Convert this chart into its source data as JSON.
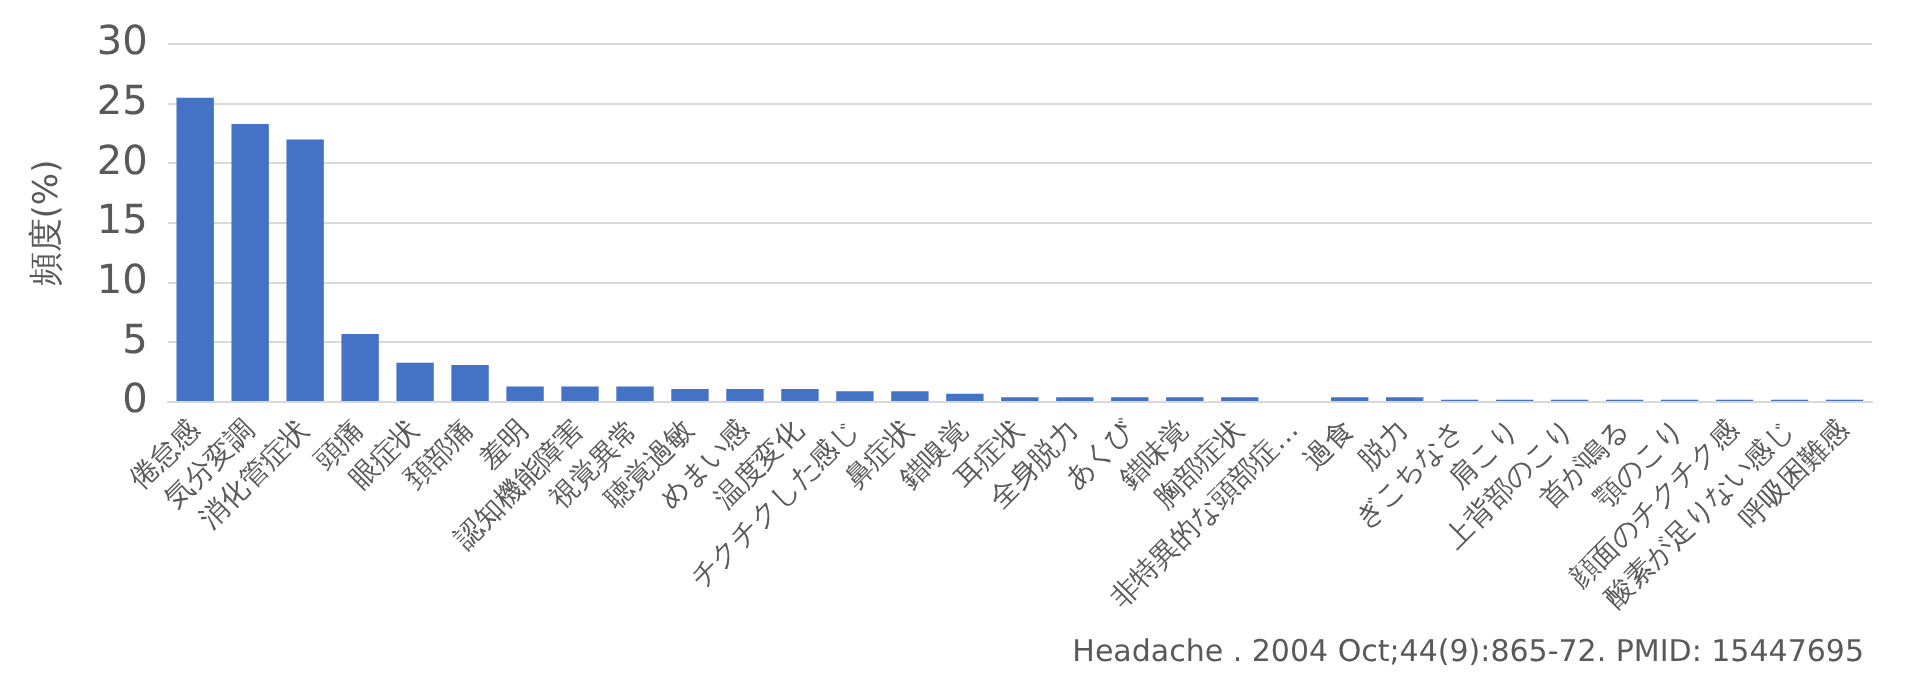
{
  "chart_data": {
    "type": "bar",
    "ylabel": "頻度(%)",
    "categories": [
      "倦怠感",
      "気分変調",
      "消化管症状",
      "頭痛",
      "眼症状",
      "頚部痛",
      "羞明",
      "認知機能障害",
      "視覚異常",
      "聴覚過敏",
      "めまい感",
      "温度変化",
      "チクチクした感じ",
      "鼻症状",
      "錯嗅覚",
      "耳症状",
      "全身脱力",
      "あくび",
      "錯味覚",
      "胸部症状",
      "非特異的な頭部症…",
      "過食",
      "脱力",
      "ぎこちなさ",
      "肩こり",
      "上背部のこり",
      "首が鳴る",
      "顎のこり",
      "顔面のチクチク感",
      "酸素が足りない感じ",
      "呼吸困難感"
    ],
    "values": [
      25.5,
      23.3,
      22.0,
      5.7,
      3.3,
      3.1,
      1.3,
      1.3,
      1.3,
      1.1,
      1.1,
      1.1,
      0.9,
      0.9,
      0.7,
      0.4,
      0.4,
      0.4,
      0.4,
      0.4,
      0,
      0.4,
      0.4,
      0.2,
      0.2,
      0.2,
      0.2,
      0.2,
      0.2,
      0.2,
      0.2
    ],
    "color": "#4472c4",
    "ylim": [
      0,
      30
    ],
    "yticks": [
      0,
      5,
      10,
      15,
      20,
      25,
      30
    ],
    "grid": "y",
    "legend": false,
    "annotations": [
      "Headache . 2004 Oct;44(9):865-72. PMID: 15447695"
    ]
  }
}
